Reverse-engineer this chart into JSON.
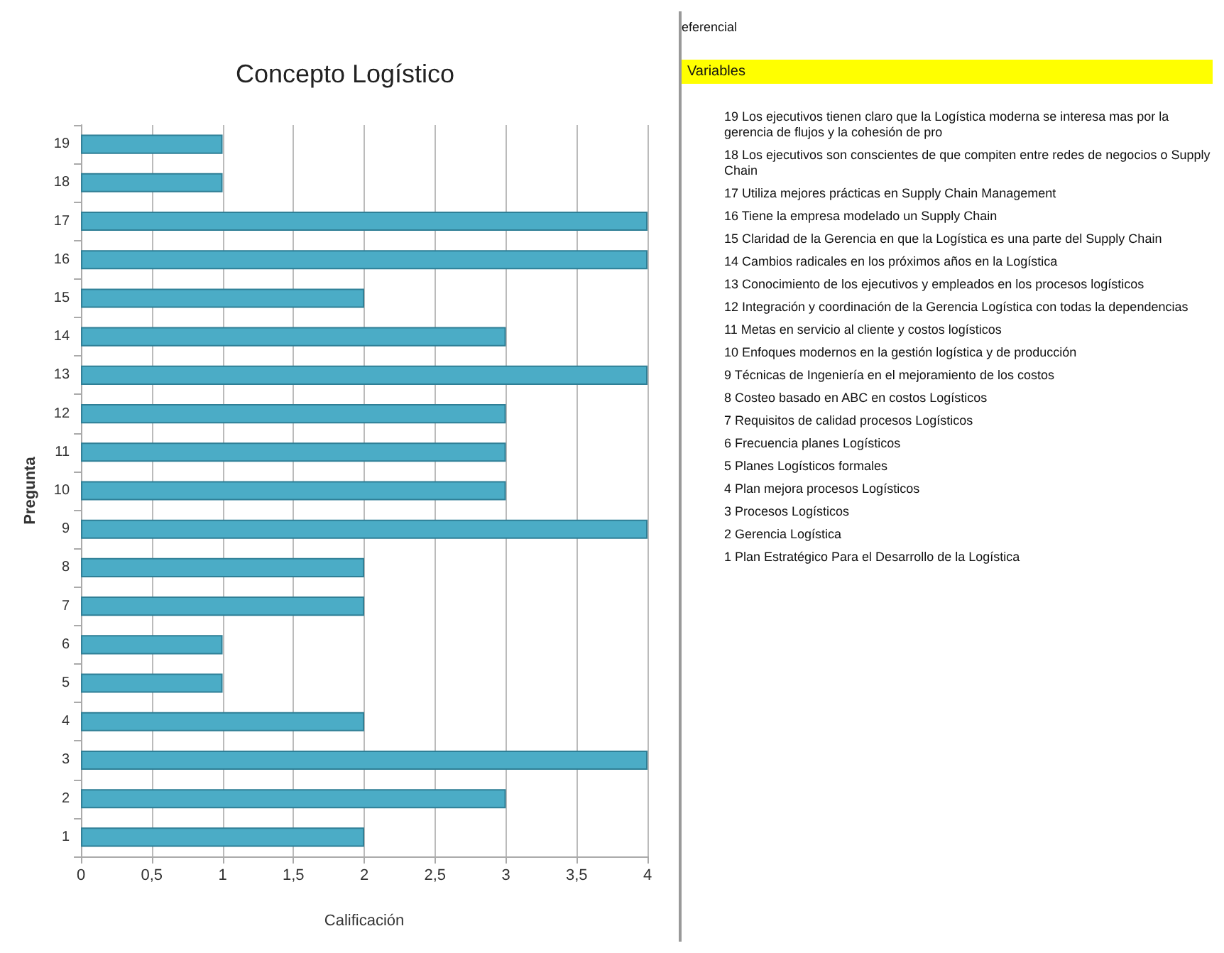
{
  "chart_data": {
    "type": "bar",
    "orientation": "horizontal",
    "title": "Concepto Logístico",
    "xlabel": "Calificación",
    "ylabel": "Pregunta",
    "categories": [
      "19",
      "18",
      "17",
      "16",
      "15",
      "14",
      "13",
      "12",
      "11",
      "10",
      "9",
      "8",
      "7",
      "6",
      "5",
      "4",
      "3",
      "2",
      "1"
    ],
    "values": [
      1,
      1,
      4,
      4,
      2,
      3,
      4,
      3,
      3,
      3,
      4,
      2,
      2,
      1,
      1,
      2,
      4,
      3,
      2
    ],
    "color": "#4bacc6",
    "xlim": [
      0,
      4
    ],
    "xticks": [
      0,
      {
        "value": 0.5,
        "label": "0,5"
      },
      1,
      {
        "value": 1.5,
        "label": "1,5"
      },
      2,
      {
        "value": 2.5,
        "label": "2,5"
      },
      3,
      {
        "value": 3.5,
        "label": "3,5"
      },
      4
    ],
    "grid": "x",
    "annotations": [
      "eferencial",
      "Variables",
      "19 Los ejecutivos tienen claro que la Logística moderna se interesa mas por la gerencia de flujos y la cohesión de pro",
      "18 Los ejecutivos son conscientes de que compiten entre redes de negocios o Supply Chain",
      "17 Utiliza mejores prácticas en Supply Chain Management",
      "16 Tiene la empresa modelado un Supply Chain",
      "15 Claridad de la Gerencia en que la Logística es una parte del Supply Chain",
      "14 Cambios radicales en los próximos años en la Logística",
      "13 Conocimiento de los ejecutivos y empleados en los procesos logísticos",
      "12 Integración y coordinación de la Gerencia Logística con todas la dependencias",
      "11 Metas en servicio al cliente y costos logísticos",
      "10 Enfoques modernos en la gestión logística y de producción",
      "9 Técnicas de Ingeniería en el mejoramiento de los costos",
      "8 Costeo basado en ABC en costos Logísticos",
      "7 Requisitos de calidad procesos Logísticos",
      "6 Frecuencia planes Logísticos",
      "5 Planes Logísticos formales",
      "4 Plan mejora procesos Logísticos",
      "3 Procesos Logísticos",
      "2 Gerencia Logística",
      "1 Plan Estratégico Para el Desarrollo de la Logística"
    ]
  }
}
